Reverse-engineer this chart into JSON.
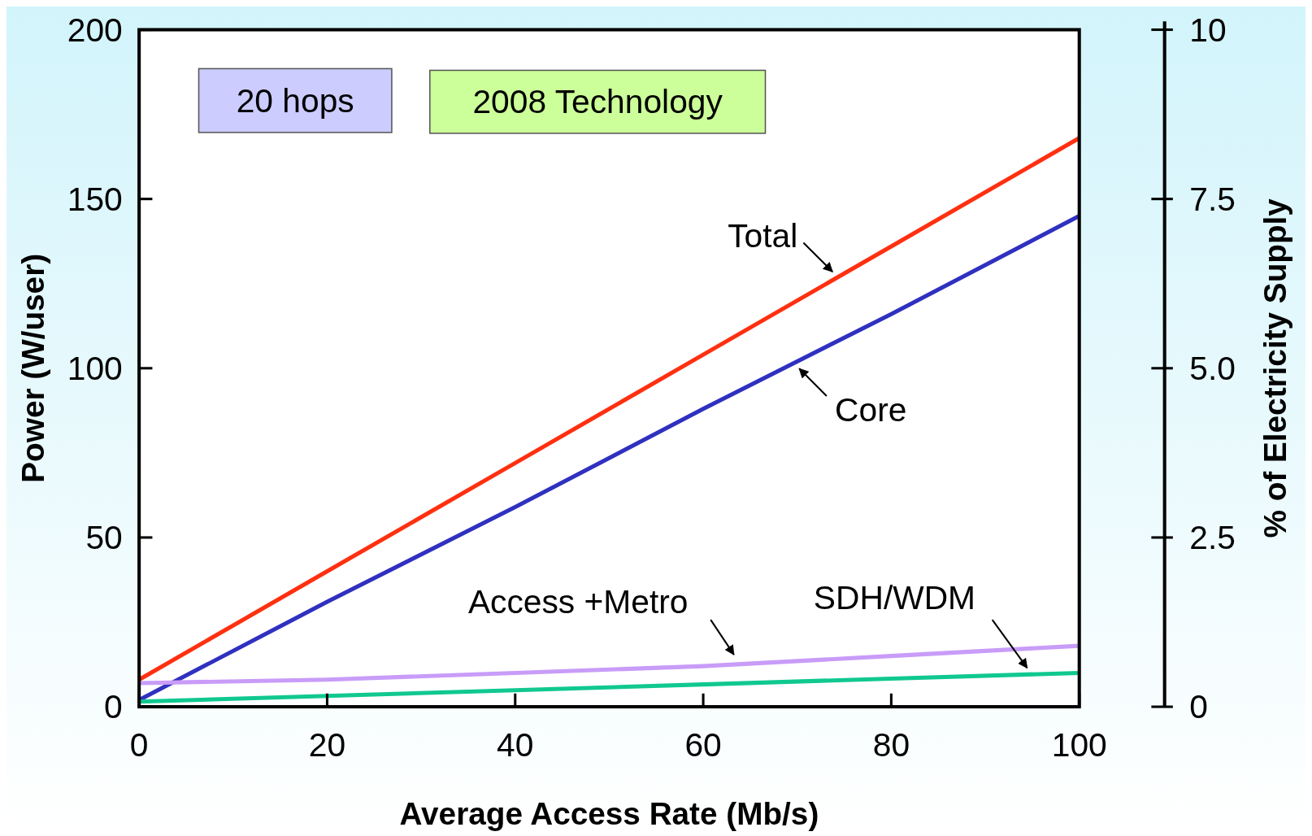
{
  "chart_data": {
    "type": "line",
    "xlabel": "Average Access Rate (Mb/s)",
    "ylabel": "Power (W/user)",
    "y2label": "% of Electricity Supply",
    "x": [
      0,
      20,
      40,
      60,
      80,
      100
    ],
    "series": [
      {
        "name": "Total",
        "color": "#ff3010",
        "values": [
          8,
          40,
          72,
          104,
          136,
          168
        ]
      },
      {
        "name": "Core",
        "color": "#3030c0",
        "values": [
          2,
          31,
          59,
          88,
          116,
          145
        ]
      },
      {
        "name": "Access +Metro",
        "color": "#c89cf8",
        "values": [
          7,
          8,
          10,
          12,
          15,
          18
        ]
      },
      {
        "name": "SDH/WDM",
        "color": "#10c890",
        "values": [
          1.5,
          3.2,
          4.9,
          6.6,
          8.3,
          10
        ]
      }
    ],
    "xlim": [
      0,
      100
    ],
    "xticks": [
      0,
      20,
      40,
      60,
      80,
      100
    ],
    "ylim": [
      0,
      200
    ],
    "yticks": [
      0,
      50,
      100,
      150,
      200
    ],
    "y2lim": [
      0,
      10
    ],
    "y2ticks": [
      0,
      {
        "value": 2.5,
        "label": "2.5"
      },
      {
        "value": 5,
        "label": "5.0"
      },
      {
        "value": 7.5,
        "label": "7.5"
      },
      10
    ],
    "annotations": [
      "20 hops",
      "2008 Technology"
    ],
    "grid": false,
    "line_style": "solid",
    "marker": "none"
  }
}
